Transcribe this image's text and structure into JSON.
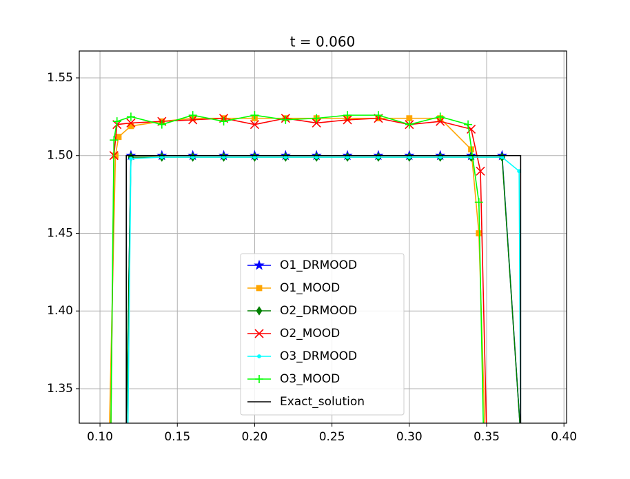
{
  "chart_data": {
    "type": "line",
    "title": "t = 0.060",
    "xlim": [
      0.0866,
      0.4017
    ],
    "ylim": [
      1.3278,
      1.5673
    ],
    "xticks": [
      {
        "value": 0.1,
        "label": "0.10"
      },
      {
        "value": 0.15,
        "label": "0.15"
      },
      {
        "value": 0.2,
        "label": "0.20"
      },
      {
        "value": 0.25,
        "label": "0.25"
      },
      {
        "value": 0.3,
        "label": "0.30"
      },
      {
        "value": 0.35,
        "label": "0.35"
      },
      {
        "value": 0.4,
        "label": "0.40"
      }
    ],
    "yticks": [
      1.35,
      {
        "value": 1.4,
        "label": "1.40"
      },
      1.45,
      {
        "value": 1.5,
        "label": "1.50"
      },
      1.55
    ],
    "grid": true,
    "legend": "lower center",
    "series": [
      {
        "name": "O1_DRMOOD",
        "color": "#0000ff",
        "marker": "star",
        "x": [
          0.117,
          0.12,
          0.14,
          0.16,
          0.18,
          0.2,
          0.22,
          0.24,
          0.26,
          0.28,
          0.3,
          0.32,
          0.34,
          0.36,
          0.372
        ],
        "values": [
          1.32,
          1.5,
          1.5,
          1.5,
          1.5,
          1.5,
          1.5,
          1.5,
          1.5,
          1.5,
          1.5,
          1.5,
          1.5,
          1.5,
          1.32
        ]
      },
      {
        "name": "O1_MOOD",
        "color": "#ffa500",
        "marker": "square",
        "x": [
          0.106,
          0.11,
          0.112,
          0.12,
          0.14,
          0.16,
          0.18,
          0.2,
          0.22,
          0.24,
          0.26,
          0.28,
          0.3,
          0.32,
          0.34,
          0.345,
          0.349
        ],
        "values": [
          1.32,
          1.5,
          1.512,
          1.519,
          1.522,
          1.524,
          1.524,
          1.524,
          1.524,
          1.524,
          1.524,
          1.524,
          1.524,
          1.524,
          1.504,
          1.45,
          1.32
        ]
      },
      {
        "name": "O2_DRMOOD",
        "color": "#007f00",
        "marker": "diamond",
        "x": [
          0.117,
          0.12,
          0.14,
          0.16,
          0.18,
          0.2,
          0.22,
          0.24,
          0.26,
          0.28,
          0.3,
          0.32,
          0.34,
          0.36,
          0.372
        ],
        "values": [
          1.32,
          1.499,
          1.499,
          1.499,
          1.499,
          1.499,
          1.499,
          1.499,
          1.499,
          1.499,
          1.499,
          1.499,
          1.499,
          1.499,
          1.32
        ]
      },
      {
        "name": "O2_MOOD",
        "color": "#ff0000",
        "marker": "x",
        "x": [
          0.107,
          0.109,
          0.111,
          0.12,
          0.14,
          0.16,
          0.18,
          0.2,
          0.22,
          0.24,
          0.26,
          0.28,
          0.3,
          0.32,
          0.34,
          0.346,
          0.35
        ],
        "values": [
          1.32,
          1.5,
          1.52,
          1.521,
          1.522,
          1.523,
          1.524,
          1.52,
          1.524,
          1.521,
          1.523,
          1.524,
          1.52,
          1.522,
          1.517,
          1.49,
          1.32
        ]
      },
      {
        "name": "O3_DRMOOD",
        "color": "#00ffff",
        "marker": "dot",
        "x": [
          0.118,
          0.12,
          0.14,
          0.16,
          0.18,
          0.2,
          0.22,
          0.24,
          0.26,
          0.28,
          0.3,
          0.32,
          0.34,
          0.36,
          0.371,
          0.372
        ],
        "values": [
          1.32,
          1.498,
          1.499,
          1.499,
          1.499,
          1.499,
          1.499,
          1.499,
          1.499,
          1.499,
          1.499,
          1.499,
          1.499,
          1.499,
          1.49,
          1.32
        ]
      },
      {
        "name": "O3_MOOD",
        "color": "#00ff00",
        "marker": "plus",
        "x": [
          0.107,
          0.109,
          0.111,
          0.12,
          0.14,
          0.16,
          0.18,
          0.2,
          0.22,
          0.24,
          0.26,
          0.28,
          0.3,
          0.32,
          0.338,
          0.345,
          0.348
        ],
        "values": [
          1.32,
          1.51,
          1.522,
          1.525,
          1.52,
          1.526,
          1.522,
          1.526,
          1.523,
          1.524,
          1.526,
          1.526,
          1.52,
          1.525,
          1.52,
          1.47,
          1.32
        ]
      },
      {
        "name": "Exact_solution",
        "color": "#000000",
        "marker": null,
        "x": [
          0.117,
          0.117,
          0.372,
          0.372
        ],
        "values": [
          1.32,
          1.5,
          1.5,
          1.32
        ]
      }
    ]
  }
}
